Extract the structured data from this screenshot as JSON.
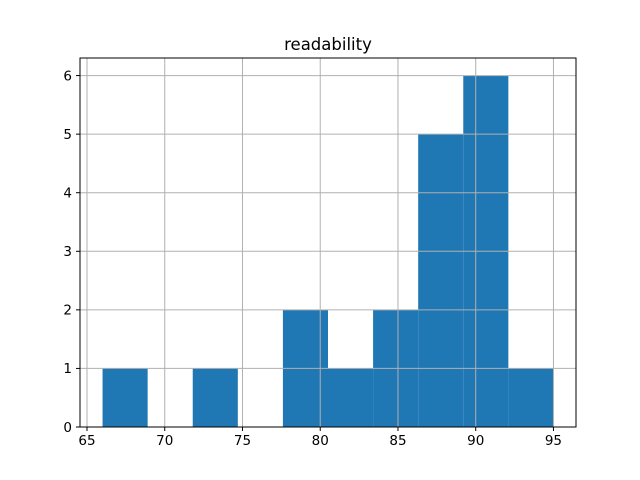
{
  "figure": {
    "background": "#ffffff"
  },
  "chart_data": {
    "type": "bar",
    "subtype": "histogram",
    "title": "readability",
    "xlabel": "",
    "ylabel": "",
    "bin_edges": [
      66.0,
      68.9,
      71.8,
      74.7,
      77.6,
      80.5,
      83.4,
      86.3,
      89.2,
      92.1,
      95.0
    ],
    "counts": [
      1,
      0,
      1,
      0,
      2,
      1,
      2,
      5,
      6,
      1
    ],
    "xticks": [
      "65",
      "70",
      "75",
      "80",
      "85",
      "90",
      "95"
    ],
    "xtick_values": [
      65,
      70,
      75,
      80,
      85,
      90,
      95
    ],
    "yticks": [
      "0",
      "1",
      "2",
      "3",
      "4",
      "5",
      "6"
    ],
    "ytick_values": [
      0,
      1,
      2,
      3,
      4,
      5,
      6
    ],
    "xlim": [
      64.55,
      96.45
    ],
    "ylim": [
      0,
      6.3
    ],
    "grid": true,
    "legend": false,
    "bar_color": "#1f77b4",
    "grid_color": "#b0b0b0",
    "axis_color": "#000000",
    "tick_label_color": "#000000",
    "title_color": "#000000"
  }
}
